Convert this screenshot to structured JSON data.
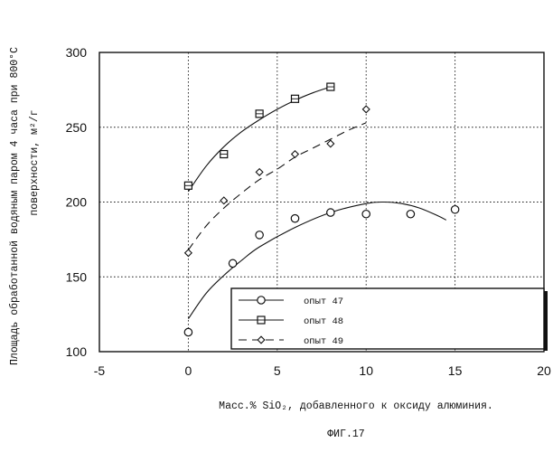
{
  "chart_data": {
    "type": "line",
    "xlabel": "Масс.% SiO₂, добавленного к оксиду алюминия.",
    "ylabel_line1": "Площадь обработанной водяным паром 4 часа при 800°C",
    "ylabel_line2": "поверхности, м²/г",
    "xlim": [
      -5,
      20
    ],
    "ylim": [
      100,
      300
    ],
    "xticks": [
      -5,
      0,
      5,
      10,
      15,
      20
    ],
    "yticks": [
      100,
      150,
      200,
      250,
      300
    ],
    "grid": true,
    "legend_position": "bottom-right",
    "series": [
      {
        "name": "опыт 47",
        "marker": "circle",
        "line_style": "solid",
        "points": [
          [
            0,
            113
          ],
          [
            2.5,
            159
          ],
          [
            4,
            178
          ],
          [
            6,
            189
          ],
          [
            8,
            193
          ],
          [
            10,
            192
          ],
          [
            12.5,
            192
          ],
          [
            15,
            195
          ]
        ],
        "fit": [
          [
            0,
            122
          ],
          [
            1,
            139
          ],
          [
            2,
            151
          ],
          [
            3,
            161
          ],
          [
            4,
            170
          ],
          [
            6,
            183
          ],
          [
            8,
            193
          ],
          [
            10,
            199
          ],
          [
            11,
            200
          ],
          [
            12,
            199
          ],
          [
            13,
            196
          ],
          [
            14,
            191
          ],
          [
            14.5,
            188
          ]
        ]
      },
      {
        "name": "опыт 48",
        "marker": "square",
        "line_style": "solid",
        "points": [
          [
            0,
            211
          ],
          [
            2,
            232
          ],
          [
            4,
            259
          ],
          [
            6,
            269
          ],
          [
            8,
            277
          ]
        ],
        "fit": [
          [
            0,
            207
          ],
          [
            1,
            224
          ],
          [
            2,
            237
          ],
          [
            3,
            247
          ],
          [
            4,
            255
          ],
          [
            5,
            262
          ],
          [
            6,
            268
          ],
          [
            7,
            273
          ],
          [
            8,
            277
          ]
        ]
      },
      {
        "name": "опыт 49",
        "marker": "diamond",
        "line_style": "dashed",
        "points": [
          [
            0,
            166
          ],
          [
            2,
            201
          ],
          [
            4,
            220
          ],
          [
            6,
            232
          ],
          [
            8,
            239
          ],
          [
            10,
            262
          ]
        ],
        "fit": [
          [
            0,
            168
          ],
          [
            1,
            184
          ],
          [
            2,
            196
          ],
          [
            3,
            206
          ],
          [
            4,
            215
          ],
          [
            5,
            222
          ],
          [
            6,
            230
          ],
          [
            7,
            236
          ],
          [
            8,
            242
          ],
          [
            9,
            248
          ],
          [
            10,
            253
          ]
        ]
      }
    ]
  },
  "caption": "ФИГ.17"
}
